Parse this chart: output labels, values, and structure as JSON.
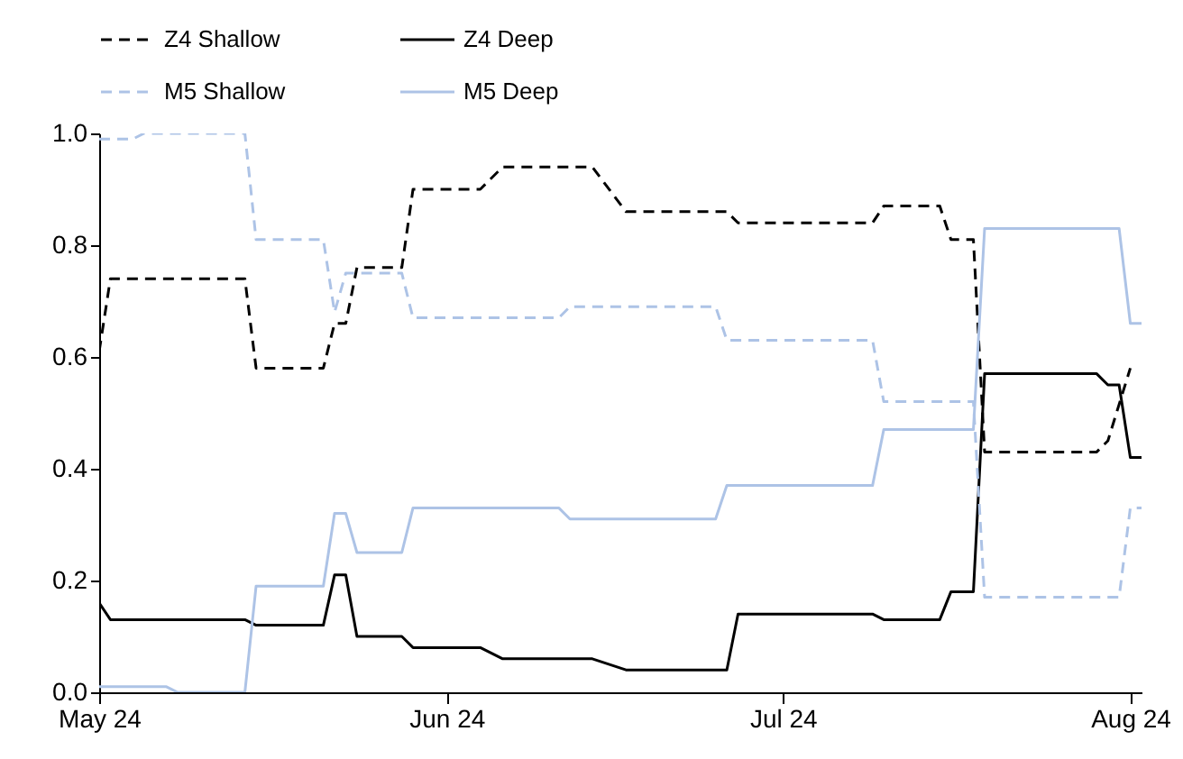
{
  "chart_data": {
    "type": "line",
    "xlim": [
      "2024-05-01",
      "2024-08-02"
    ],
    "xticks": [
      {
        "value": "2024-05-01",
        "label": "May 24"
      },
      {
        "value": "2024-06-01",
        "label": "Jun 24"
      },
      {
        "value": "2024-07-01",
        "label": "Jul 24"
      },
      {
        "value": "2024-08-01",
        "label": "Aug 24"
      }
    ],
    "ylim": [
      0,
      1
    ],
    "yticks": [
      {
        "value": 0,
        "label": "0.0"
      },
      {
        "value": 0.2,
        "label": "0.2"
      },
      {
        "value": 0.4,
        "label": "0.4"
      },
      {
        "value": 0.6,
        "label": "0.6"
      },
      {
        "value": 0.8,
        "label": "0.8"
      },
      {
        "value": 1,
        "label": "1.0"
      }
    ],
    "grid": false,
    "legend": "top",
    "series": [
      {
        "name": "Z4 Shallow",
        "color": "#000000",
        "line_style": "dashed",
        "x": [
          "2024-05-01",
          "2024-05-02",
          "2024-05-14",
          "2024-05-15",
          "2024-05-21",
          "2024-05-22",
          "2024-05-23",
          "2024-05-24",
          "2024-05-28",
          "2024-05-29",
          "2024-06-04",
          "2024-06-06",
          "2024-06-14",
          "2024-06-17",
          "2024-06-26",
          "2024-06-27",
          "2024-07-09",
          "2024-07-10",
          "2024-07-15",
          "2024-07-16",
          "2024-07-18",
          "2024-07-19",
          "2024-07-29",
          "2024-07-30",
          "2024-08-01"
        ],
        "values": [
          0.61,
          0.74,
          0.74,
          0.58,
          0.58,
          0.66,
          0.66,
          0.76,
          0.76,
          0.9,
          0.9,
          0.94,
          0.94,
          0.86,
          0.86,
          0.84,
          0.84,
          0.87,
          0.87,
          0.81,
          0.81,
          0.43,
          0.43,
          0.45,
          0.58
        ]
      },
      {
        "name": "Z4 Deep",
        "color": "#000000",
        "line_style": "solid",
        "x": [
          "2024-05-01",
          "2024-05-02",
          "2024-05-14",
          "2024-05-15",
          "2024-05-21",
          "2024-05-22",
          "2024-05-23",
          "2024-05-24",
          "2024-05-28",
          "2024-05-29",
          "2024-06-04",
          "2024-06-06",
          "2024-06-14",
          "2024-06-17",
          "2024-06-26",
          "2024-06-27",
          "2024-07-09",
          "2024-07-10",
          "2024-07-15",
          "2024-07-16",
          "2024-07-18",
          "2024-07-19",
          "2024-07-29",
          "2024-07-30",
          "2024-07-31",
          "2024-08-01",
          "2024-08-02"
        ],
        "values": [
          0.16,
          0.13,
          0.13,
          0.12,
          0.12,
          0.21,
          0.21,
          0.1,
          0.1,
          0.08,
          0.08,
          0.06,
          0.06,
          0.04,
          0.04,
          0.14,
          0.14,
          0.13,
          0.13,
          0.18,
          0.18,
          0.57,
          0.57,
          0.55,
          0.55,
          0.42,
          0.42
        ]
      },
      {
        "name": "M5 Shallow",
        "color": "#adc3e6",
        "line_style": "dashed",
        "x": [
          "2024-05-01",
          "2024-05-04",
          "2024-05-05",
          "2024-05-14",
          "2024-05-15",
          "2024-05-21",
          "2024-05-22",
          "2024-05-23",
          "2024-05-28",
          "2024-05-29",
          "2024-06-11",
          "2024-06-12",
          "2024-06-25",
          "2024-06-26",
          "2024-07-09",
          "2024-07-10",
          "2024-07-18",
          "2024-07-19",
          "2024-07-31",
          "2024-08-01",
          "2024-08-02"
        ],
        "values": [
          0.99,
          0.99,
          1.0,
          1.0,
          0.81,
          0.81,
          0.68,
          0.75,
          0.75,
          0.67,
          0.67,
          0.69,
          0.69,
          0.63,
          0.63,
          0.52,
          0.52,
          0.17,
          0.17,
          0.33,
          0.33
        ]
      },
      {
        "name": "M5 Deep",
        "color": "#adc3e6",
        "line_style": "solid",
        "x": [
          "2024-05-01",
          "2024-05-07",
          "2024-05-08",
          "2024-05-14",
          "2024-05-15",
          "2024-05-21",
          "2024-05-22",
          "2024-05-23",
          "2024-05-24",
          "2024-05-28",
          "2024-05-29",
          "2024-06-11",
          "2024-06-12",
          "2024-06-25",
          "2024-06-26",
          "2024-07-09",
          "2024-07-10",
          "2024-07-18",
          "2024-07-19",
          "2024-07-31",
          "2024-08-01",
          "2024-08-02"
        ],
        "values": [
          0.01,
          0.01,
          0.0,
          0.0,
          0.19,
          0.19,
          0.32,
          0.32,
          0.25,
          0.25,
          0.33,
          0.33,
          0.31,
          0.31,
          0.37,
          0.37,
          0.47,
          0.47,
          0.83,
          0.83,
          0.66,
          0.66
        ]
      }
    ]
  }
}
